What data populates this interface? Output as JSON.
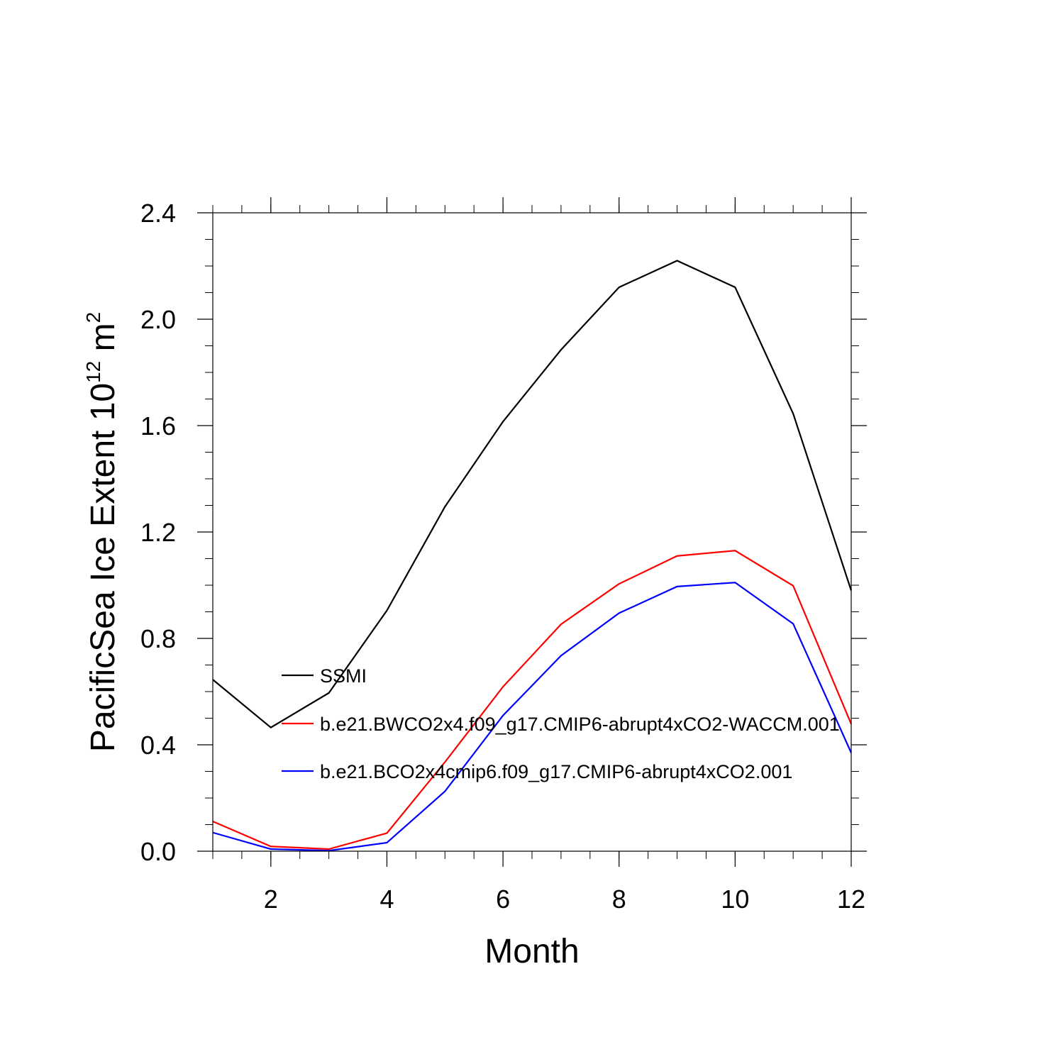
{
  "chart_data": {
    "type": "line",
    "title": "",
    "xlabel": "Month",
    "ylabel_main": "PacificSea Ice Extent 10",
    "ylabel_exponent": "12",
    "ylabel_unit_base": " m",
    "ylabel_unit_exponent": "2",
    "xlim": [
      1,
      12
    ],
    "ylim": [
      0.0,
      2.4
    ],
    "x": [
      1,
      2,
      3,
      4,
      5,
      6,
      7,
      8,
      9,
      10,
      11,
      12
    ],
    "x_ticks": [
      2,
      4,
      6,
      8,
      10,
      12
    ],
    "x_tick_labels": [
      "2",
      "4",
      "6",
      "8",
      "10",
      "12"
    ],
    "y_ticks": [
      0.0,
      0.4,
      0.8,
      1.2,
      1.6,
      2.0,
      2.4
    ],
    "y_tick_labels": [
      "0.0",
      "0.4",
      "0.8",
      "1.2",
      "1.6",
      "2.0",
      "2.4"
    ],
    "grid": false,
    "legend_position": "center-left",
    "series": [
      {
        "name": "SSMI",
        "color": "#000000",
        "values": [
          0.645,
          0.465,
          0.595,
          0.905,
          1.295,
          1.615,
          1.885,
          2.12,
          2.22,
          2.12,
          1.645,
          0.98
        ]
      },
      {
        "name": "b.e21.BWCO2x4.f09_g17.CMIP6-abrupt4xCO2-WACCM.001",
        "color": "#ff0000",
        "values": [
          0.112,
          0.018,
          0.008,
          0.068,
          0.335,
          0.618,
          0.853,
          1.005,
          1.11,
          1.13,
          0.998,
          0.478
        ]
      },
      {
        "name": "b.e21.BCO2x4cmip6.f09_g17.CMIP6-abrupt4xCO2.001",
        "color": "#0000ff",
        "values": [
          0.07,
          0.008,
          0.002,
          0.032,
          0.225,
          0.51,
          0.735,
          0.895,
          0.995,
          1.01,
          0.855,
          0.37
        ]
      }
    ]
  }
}
